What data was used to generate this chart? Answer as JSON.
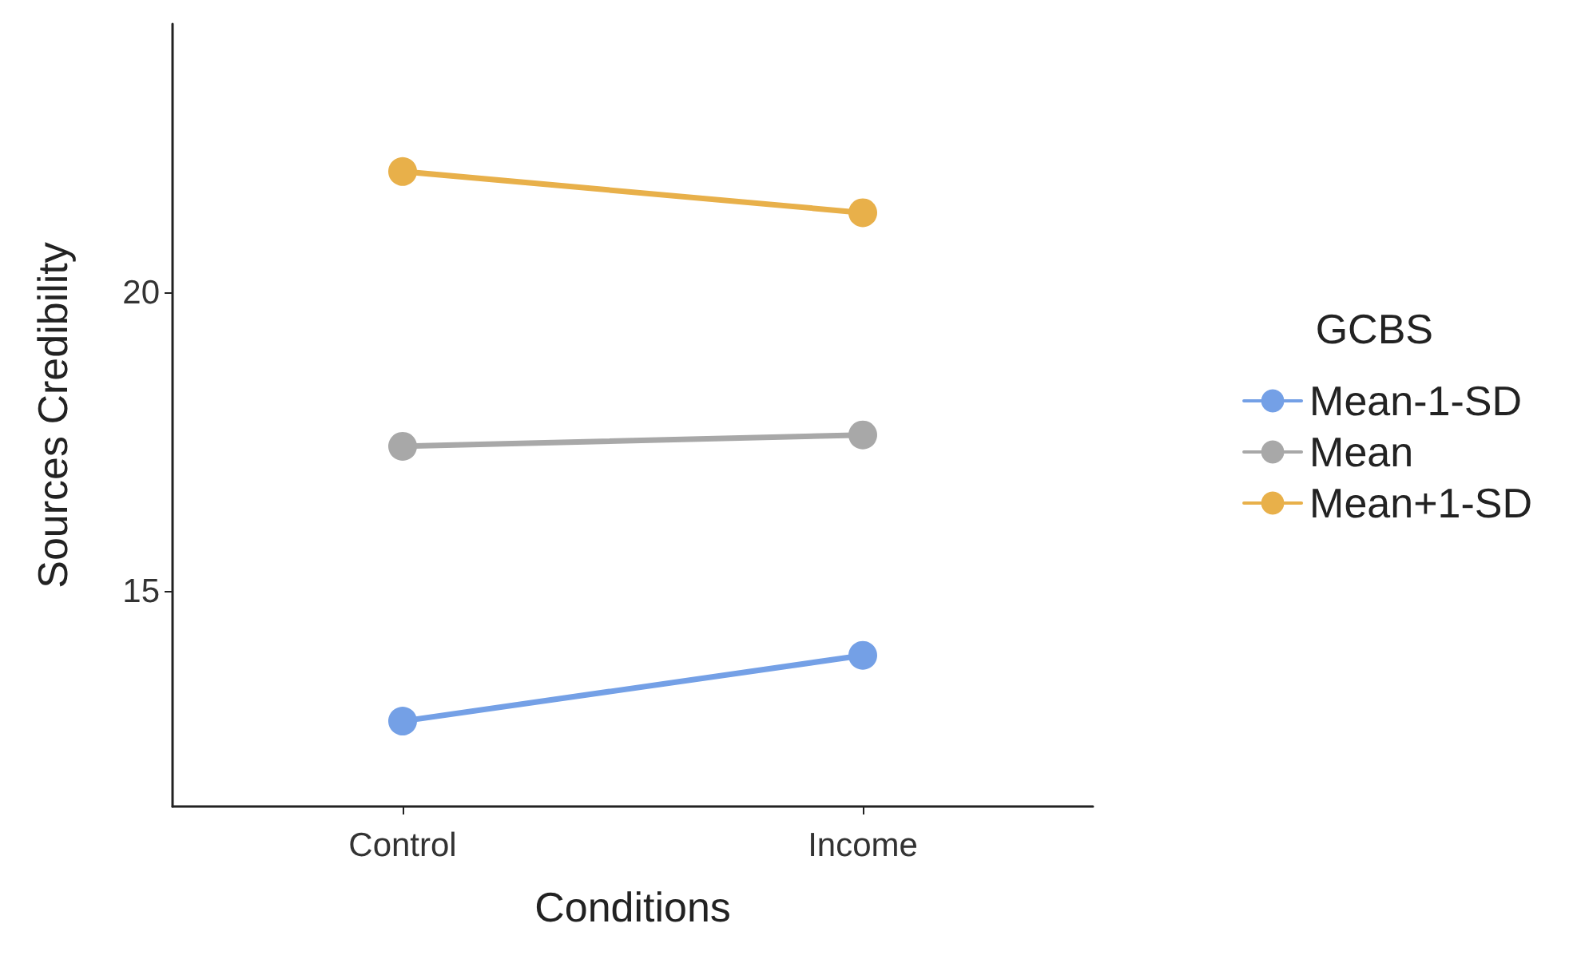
{
  "chart_data": {
    "type": "line",
    "xlabel": "Conditions",
    "ylabel": "Sources Credibility",
    "legend_title": "GCBS",
    "categories": [
      "Control",
      "Income"
    ],
    "series": [
      {
        "name": "Mean-1-SD",
        "color": "#74a0e6",
        "values": [
          12.83,
          13.93
        ]
      },
      {
        "name": "Mean",
        "color": "#a8a8a8",
        "values": [
          17.43,
          17.62
        ]
      },
      {
        "name": "Mean+1-SD",
        "color": "#e8b04a",
        "values": [
          22.03,
          21.34
        ]
      }
    ],
    "ylim": [
      11.4,
      24.5
    ],
    "yticks": [
      15,
      20
    ],
    "grid": false,
    "legend": "right",
    "marker": "circle",
    "line_style": "solid"
  }
}
